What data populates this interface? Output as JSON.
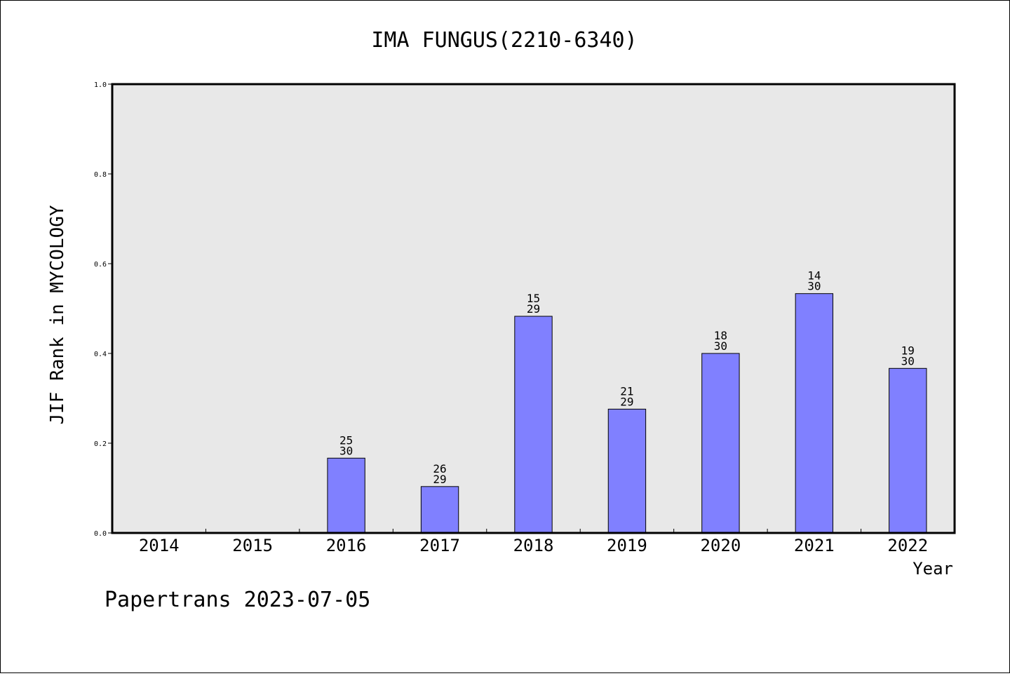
{
  "chart_data": {
    "type": "bar",
    "title": "IMA FUNGUS(2210-6340)",
    "xlabel": "Year",
    "ylabel": "JIF Rank in MYCOLOGY",
    "ylim": [
      0,
      1.0
    ],
    "yticks": [
      "0.0",
      "0.2",
      "0.4",
      "0.6",
      "0.8",
      "1.0"
    ],
    "grid": false,
    "categories": [
      "2014",
      "2015",
      "2016",
      "2017",
      "2018",
      "2019",
      "2020",
      "2021",
      "2022"
    ],
    "values": [
      null,
      null,
      0.1667,
      0.1034,
      0.4828,
      0.2759,
      0.4,
      0.5333,
      0.3667
    ],
    "labels_top": [
      "",
      "",
      "25",
      "26",
      "15",
      "21",
      "18",
      "14",
      "19"
    ],
    "labels_bottom": [
      "",
      "",
      "30",
      "29",
      "29",
      "29",
      "30",
      "30",
      "30"
    ],
    "colors": {
      "bar": "#8080ff",
      "plot_bg": "#e8e8e8",
      "edge": "#000000"
    }
  },
  "footer": "Papertrans 2023-07-05"
}
